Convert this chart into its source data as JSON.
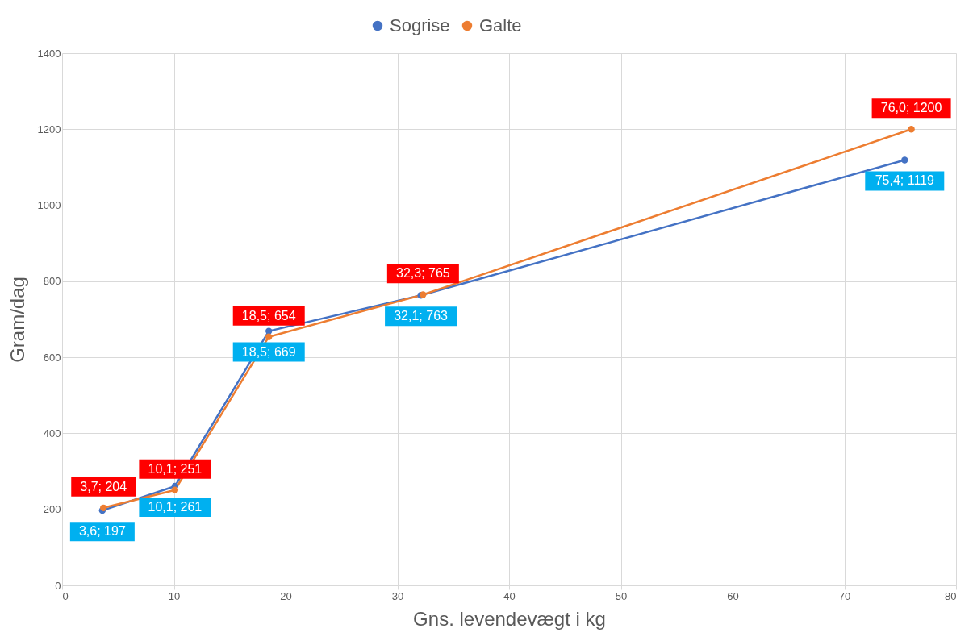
{
  "chart_data": {
    "type": "line",
    "xlabel": "Gns. levendevægt i kg",
    "ylabel": "Gram/dag",
    "xlim": [
      0,
      80
    ],
    "xticks": [
      0,
      10,
      20,
      30,
      40,
      50,
      60,
      70,
      80
    ],
    "ylim": [
      0,
      1400
    ],
    "yticks": [
      0,
      200,
      400,
      600,
      800,
      1000,
      1200,
      1400
    ],
    "grid": true,
    "legend": "top",
    "marker": "circle",
    "line_style": "solid",
    "series": [
      {
        "name": "Sogrise",
        "color": "#4472c4",
        "x": [
          3.6,
          10.1,
          18.5,
          32.1,
          75.4
        ],
        "values": [
          197,
          261,
          669,
          763,
          1119
        ],
        "value_labels": [
          "3,6; 197",
          "10,1; 261",
          "18,5; 669",
          "32,1; 763",
          "75,4; 1119"
        ]
      },
      {
        "name": "Galte",
        "color": "#ed7d31",
        "x": [
          3.7,
          10.1,
          18.5,
          32.3,
          76.0
        ],
        "values": [
          204,
          251,
          654,
          765,
          1200
        ],
        "value_labels": [
          "3,7; 204",
          "10,1; 251",
          "18,5; 654",
          "32,3; 765",
          "76,0; 1200"
        ]
      }
    ]
  }
}
